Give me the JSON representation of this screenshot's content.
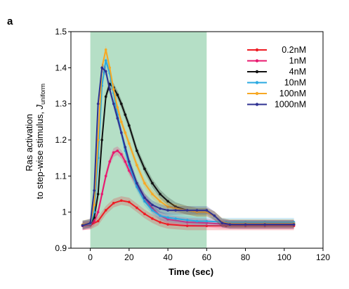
{
  "panel_label": "a",
  "chart_data": {
    "type": "line",
    "title": "",
    "xlabel": "Time (sec)",
    "ylabel_line1": "Ras activation",
    "ylabel_line2": "to step-wise stimulus, ",
    "ylabel_symbol": "J",
    "ylabel_subscript": "uniform",
    "xlim": [
      -10,
      120
    ],
    "ylim": [
      0.9,
      1.5
    ],
    "xticks": [
      0,
      20,
      40,
      60,
      80,
      100,
      120
    ],
    "yticks": [
      0.9,
      1,
      1.1,
      1.2,
      1.3,
      1.4,
      1.5
    ],
    "ytick_labels": [
      "0.9",
      "1",
      "1.1",
      "1.2",
      "1.3",
      "1.4",
      "1.5"
    ],
    "stimulus_window": [
      0,
      60
    ],
    "stimulus_color": "#b5dfc6",
    "legend_position": "top-right",
    "series": [
      {
        "name": "0.2nM",
        "color": "#ee1c24",
        "x": [
          -4,
          0,
          4,
          8,
          12,
          16,
          20,
          24,
          28,
          32,
          36,
          40,
          50,
          60,
          70,
          80,
          90,
          105
        ],
        "y": [
          0.962,
          0.964,
          0.975,
          1.005,
          1.025,
          1.032,
          1.028,
          1.012,
          0.995,
          0.982,
          0.972,
          0.966,
          0.962,
          0.962,
          0.962,
          0.962,
          0.962,
          0.962
        ]
      },
      {
        "name": "1nM",
        "color": "#e8196f",
        "x": [
          -4,
          0,
          2,
          4,
          6,
          8,
          10,
          12,
          14,
          16,
          18,
          20,
          24,
          28,
          32,
          36,
          40,
          50,
          60,
          70,
          80,
          90,
          105
        ],
        "y": [
          0.962,
          0.965,
          0.975,
          1.0,
          1.05,
          1.1,
          1.14,
          1.165,
          1.17,
          1.16,
          1.14,
          1.115,
          1.075,
          1.04,
          1.01,
          0.99,
          0.98,
          0.972,
          0.97,
          0.966,
          0.965,
          0.965,
          0.965
        ]
      },
      {
        "name": "4nM",
        "color": "#111111",
        "x": [
          -4,
          0,
          2,
          4,
          6,
          8,
          10,
          12,
          14,
          16,
          18,
          20,
          24,
          28,
          32,
          36,
          40,
          44,
          50,
          55,
          60,
          64,
          68,
          72,
          80,
          90,
          105
        ],
        "y": [
          0.965,
          0.968,
          0.985,
          1.05,
          1.2,
          1.32,
          1.355,
          1.345,
          1.325,
          1.3,
          1.27,
          1.24,
          1.17,
          1.12,
          1.08,
          1.05,
          1.03,
          1.015,
          1.005,
          1.0,
          1.0,
          0.99,
          0.97,
          0.967,
          0.967,
          0.967,
          0.967
        ]
      },
      {
        "name": "10nM",
        "color": "#29a9e1",
        "x": [
          -4,
          0,
          2,
          4,
          6,
          8,
          10,
          12,
          14,
          16,
          18,
          20,
          24,
          28,
          32,
          36,
          40,
          44,
          50,
          55,
          60,
          70,
          80,
          90,
          105
        ],
        "y": [
          0.965,
          0.968,
          1.0,
          1.15,
          1.35,
          1.42,
          1.385,
          1.33,
          1.27,
          1.22,
          1.17,
          1.13,
          1.07,
          1.03,
          1.005,
          0.99,
          0.985,
          0.982,
          0.978,
          0.975,
          0.975,
          0.972,
          0.972,
          0.972,
          0.972
        ]
      },
      {
        "name": "100nM",
        "color": "#f7a823",
        "x": [
          -4,
          0,
          2,
          4,
          6,
          8,
          10,
          12,
          14,
          16,
          18,
          20,
          24,
          28,
          32,
          36,
          40,
          44,
          50,
          55,
          60,
          64,
          68,
          72,
          80,
          90,
          105
        ],
        "y": [
          0.965,
          0.97,
          1.02,
          1.2,
          1.4,
          1.45,
          1.4,
          1.34,
          1.29,
          1.25,
          1.22,
          1.19,
          1.13,
          1.08,
          1.05,
          1.03,
          1.015,
          1.01,
          1.005,
          1.0,
          1.0,
          0.99,
          0.972,
          0.968,
          0.968,
          0.968,
          0.968
        ]
      },
      {
        "name": "1000nM",
        "color": "#2e3192",
        "x": [
          -4,
          0,
          2,
          4,
          6,
          8,
          10,
          12,
          14,
          16,
          18,
          20,
          24,
          28,
          32,
          36,
          40,
          44,
          50,
          55,
          60,
          64,
          68,
          72,
          80,
          90,
          105
        ],
        "y": [
          0.963,
          0.97,
          1.06,
          1.3,
          1.4,
          1.39,
          1.34,
          1.3,
          1.26,
          1.22,
          1.18,
          1.14,
          1.08,
          1.04,
          1.02,
          1.01,
          1.005,
          1.005,
          1.005,
          1.005,
          1.005,
          0.99,
          0.97,
          0.966,
          0.966,
          0.966,
          0.966
        ]
      }
    ]
  }
}
